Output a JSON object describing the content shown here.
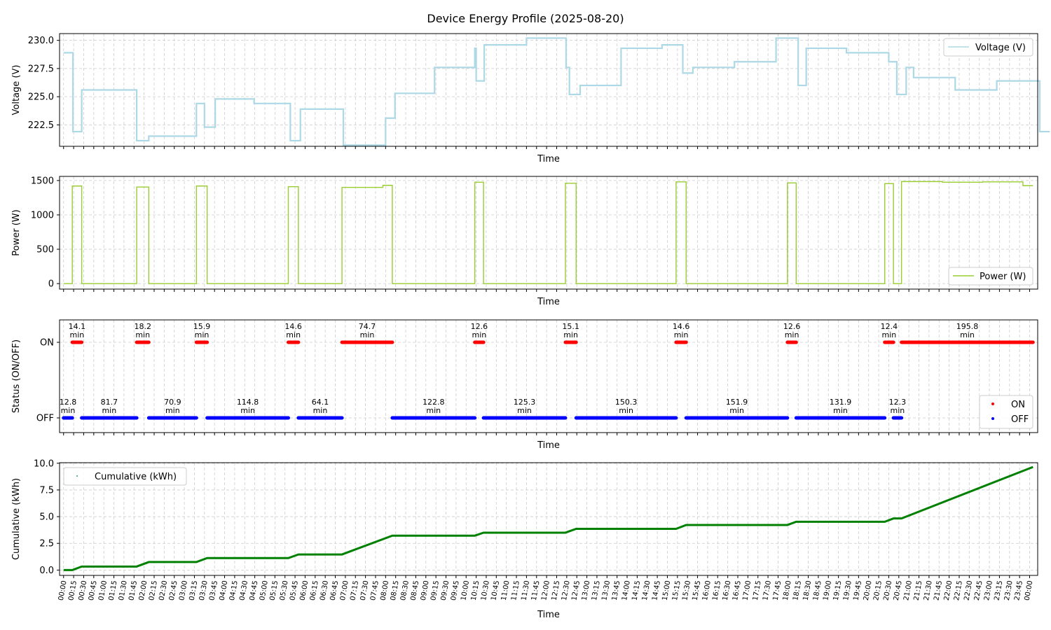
{
  "title": "Device Energy Profile (2025-08-20)",
  "colors": {
    "voltage": "#add8e6",
    "power": "#9acd32",
    "on": "#ff0000",
    "off": "#0000ff",
    "cumulative": "#008000",
    "grid": "#cccccc"
  },
  "chart_data": [
    {
      "type": "line",
      "step": true,
      "ylabel": "Voltage (V)",
      "xlabel": "Time",
      "ylim": [
        220.6,
        230.6
      ],
      "yticks": [
        "222.5",
        "225.0",
        "227.5",
        "230.0"
      ],
      "legend": {
        "placement": "upper right"
      },
      "grid": true,
      "series": [
        {
          "name": "Voltage (V)",
          "points": [
            [
              "00:00",
              228.9
            ],
            [
              "00:14",
              221.9
            ],
            [
              "00:27",
              225.6
            ],
            [
              "01:49",
              221.1
            ],
            [
              "02:07",
              221.5
            ],
            [
              "03:18",
              224.4
            ],
            [
              "03:30",
              222.3
            ],
            [
              "03:46",
              224.8
            ],
            [
              "04:44",
              224.4
            ],
            [
              "05:38",
              221.1
            ],
            [
              "05:53",
              223.9
            ],
            [
              "06:57",
              220.7
            ],
            [
              "08:00",
              223.1
            ],
            [
              "08:14",
              225.3
            ],
            [
              "09:13",
              227.6
            ],
            [
              "10:13",
              229.3
            ],
            [
              "10:15",
              226.4
            ],
            [
              "10:27",
              229.6
            ],
            [
              "11:30",
              230.2
            ],
            [
              "12:29",
              227.6
            ],
            [
              "12:34",
              225.2
            ],
            [
              "12:50",
              226.0
            ],
            [
              "13:51",
              229.3
            ],
            [
              "14:52",
              229.6
            ],
            [
              "15:23",
              227.1
            ],
            [
              "15:38",
              227.6
            ],
            [
              "16:40",
              228.1
            ],
            [
              "17:42",
              230.2
            ],
            [
              "18:15",
              226.0
            ],
            [
              "18:27",
              229.3
            ],
            [
              "19:27",
              228.9
            ],
            [
              "20:30",
              228.1
            ],
            [
              "20:42",
              225.2
            ],
            [
              "20:56",
              227.6
            ],
            [
              "21:07",
              226.7
            ],
            [
              "22:09",
              225.6
            ],
            [
              "23:11",
              226.4
            ],
            [
              "00:15",
              221.9
            ],
            [
              "00:30",
              221.9
            ]
          ]
        }
      ]
    },
    {
      "type": "line",
      "step": true,
      "ylabel": "Power (W)",
      "xlabel": "Time",
      "ylim": [
        -80,
        1560
      ],
      "yticks": [
        "0",
        "500",
        "1000",
        "1500"
      ],
      "legend": {
        "placement": "lower right"
      },
      "grid": true,
      "series": [
        {
          "name": "Power (W)",
          "points": [
            [
              "00:00",
              0
            ],
            [
              "00:13",
              1420
            ],
            [
              "00:27",
              0
            ],
            [
              "01:49",
              1405
            ],
            [
              "02:07",
              0
            ],
            [
              "03:18",
              1420
            ],
            [
              "03:34",
              0
            ],
            [
              "05:35",
              1410
            ],
            [
              "05:50",
              0
            ],
            [
              "06:55",
              1400
            ],
            [
              "07:56",
              1430
            ],
            [
              "08:10",
              0
            ],
            [
              "10:13",
              1475
            ],
            [
              "10:26",
              0
            ],
            [
              "12:28",
              1460
            ],
            [
              "12:44",
              0
            ],
            [
              "15:13",
              1480
            ],
            [
              "15:28",
              0
            ],
            [
              "17:59",
              1465
            ],
            [
              "18:12",
              0
            ],
            [
              "20:24",
              1455
            ],
            [
              "20:37",
              0
            ],
            [
              "20:49",
              1485
            ],
            [
              "21:50",
              1475
            ],
            [
              "22:50",
              1480
            ],
            [
              "23:50",
              1425
            ],
            [
              "00:05",
              1425
            ]
          ]
        }
      ]
    },
    {
      "type": "scatter",
      "ylabel": "Status (ON/OFF)",
      "xlabel": "Time",
      "yticks": [
        "OFF",
        "ON"
      ],
      "legend": {
        "placement": "lower right"
      },
      "grid": true,
      "series": [
        {
          "name": "ON",
          "segments": [
            {
              "start": "00:13",
              "end": "00:27",
              "label": "14.1\nmin"
            },
            {
              "start": "01:49",
              "end": "02:07",
              "label": "18.2\nmin"
            },
            {
              "start": "03:18",
              "end": "03:34",
              "label": "15.9\nmin"
            },
            {
              "start": "05:35",
              "end": "05:50",
              "label": "14.6\nmin"
            },
            {
              "start": "06:55",
              "end": "08:10",
              "label": "74.7\nmin"
            },
            {
              "start": "10:13",
              "end": "10:26",
              "label": "12.6\nmin"
            },
            {
              "start": "12:28",
              "end": "12:44",
              "label": "15.1\nmin"
            },
            {
              "start": "15:13",
              "end": "15:28",
              "label": "14.6\nmin"
            },
            {
              "start": "17:59",
              "end": "18:12",
              "label": "12.6\nmin"
            },
            {
              "start": "20:24",
              "end": "20:37",
              "label": "12.4\nmin"
            },
            {
              "start": "20:49",
              "end": "00:05",
              "label": "195.8\nmin"
            }
          ]
        },
        {
          "name": "OFF",
          "segments": [
            {
              "start": "00:00",
              "end": "00:13",
              "label": "12.8\nmin"
            },
            {
              "start": "00:27",
              "end": "01:49",
              "label": "81.7\nmin"
            },
            {
              "start": "02:07",
              "end": "03:18",
              "label": "70.9\nmin"
            },
            {
              "start": "03:34",
              "end": "05:35",
              "label": "114.8\nmin"
            },
            {
              "start": "05:50",
              "end": "06:55",
              "label": "64.1\nmin"
            },
            {
              "start": "08:10",
              "end": "10:13",
              "label": "122.8\nmin"
            },
            {
              "start": "10:26",
              "end": "12:28",
              "label": "125.3\nmin"
            },
            {
              "start": "12:44",
              "end": "15:13",
              "label": "150.3\nmin"
            },
            {
              "start": "15:28",
              "end": "17:59",
              "label": "151.9\nmin"
            },
            {
              "start": "18:12",
              "end": "20:24",
              "label": "131.9\nmin"
            },
            {
              "start": "20:37",
              "end": "20:49",
              "label": "12.3\nmin"
            }
          ]
        }
      ]
    },
    {
      "type": "scatter",
      "ylabel": "Cumulative (kWh)",
      "xlabel": "Time",
      "ylim": [
        -0.5,
        10.05
      ],
      "yticks": [
        "0.0",
        "2.5",
        "5.0",
        "7.5",
        "10.0"
      ],
      "legend": {
        "placement": "upper left"
      },
      "grid": true,
      "series": [
        {
          "name": "Cumulative (kWh)",
          "points": [
            [
              "00:00",
              0.0
            ],
            [
              "00:13",
              0.0
            ],
            [
              "00:27",
              0.33
            ],
            [
              "01:49",
              0.33
            ],
            [
              "02:07",
              0.75
            ],
            [
              "03:18",
              0.75
            ],
            [
              "03:34",
              1.12
            ],
            [
              "05:35",
              1.12
            ],
            [
              "05:50",
              1.46
            ],
            [
              "06:55",
              1.46
            ],
            [
              "08:10",
              3.22
            ],
            [
              "10:13",
              3.22
            ],
            [
              "10:26",
              3.5
            ],
            [
              "12:28",
              3.5
            ],
            [
              "12:44",
              3.86
            ],
            [
              "15:13",
              3.86
            ],
            [
              "15:28",
              4.22
            ],
            [
              "17:59",
              4.22
            ],
            [
              "18:12",
              4.52
            ],
            [
              "20:24",
              4.52
            ],
            [
              "20:37",
              4.83
            ],
            [
              "20:49",
              4.83
            ],
            [
              "00:05",
              9.65
            ]
          ]
        }
      ]
    }
  ],
  "x_ticks": [
    "00:00",
    "00:15",
    "00:30",
    "00:45",
    "01:00",
    "01:15",
    "01:30",
    "01:45",
    "02:00",
    "02:15",
    "02:30",
    "02:45",
    "03:00",
    "03:15",
    "03:30",
    "03:45",
    "04:00",
    "04:15",
    "04:30",
    "04:45",
    "05:00",
    "05:15",
    "05:30",
    "05:45",
    "06:00",
    "06:15",
    "06:30",
    "06:45",
    "07:00",
    "07:15",
    "07:30",
    "07:45",
    "08:00",
    "08:15",
    "08:30",
    "08:45",
    "09:00",
    "09:15",
    "09:30",
    "09:45",
    "10:00",
    "10:15",
    "10:30",
    "10:45",
    "11:00",
    "11:15",
    "11:30",
    "11:45",
    "12:00",
    "12:15",
    "12:30",
    "12:45",
    "13:00",
    "13:15",
    "13:30",
    "13:45",
    "14:00",
    "14:15",
    "14:30",
    "14:45",
    "15:00",
    "15:15",
    "15:30",
    "15:45",
    "16:00",
    "16:15",
    "16:30",
    "16:45",
    "17:00",
    "17:15",
    "17:30",
    "17:45",
    "18:00",
    "18:15",
    "18:30",
    "18:45",
    "19:00",
    "19:15",
    "19:30",
    "19:45",
    "20:00",
    "20:15",
    "20:30",
    "20:45",
    "21:00",
    "21:15",
    "21:30",
    "21:45",
    "22:00",
    "22:15",
    "22:30",
    "22:45",
    "23:00",
    "23:15",
    "23:30",
    "23:45",
    "00:00"
  ]
}
